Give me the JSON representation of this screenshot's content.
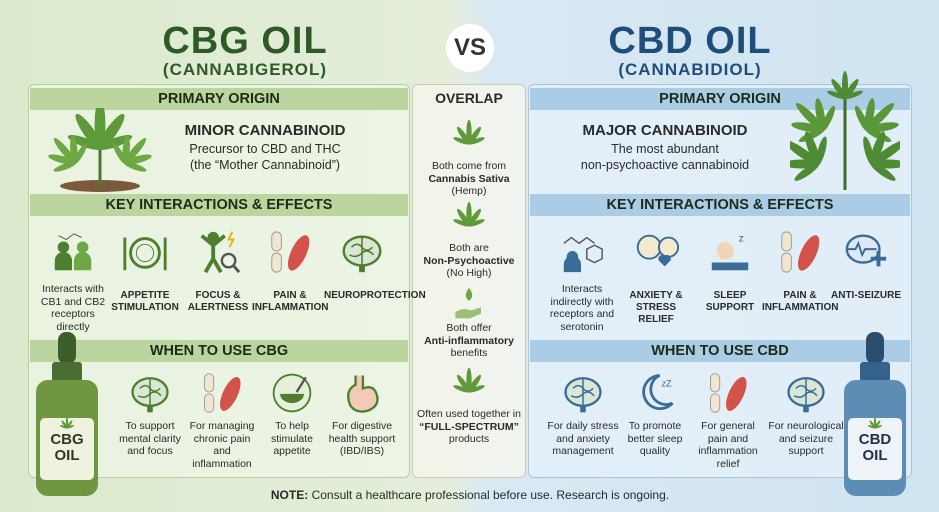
{
  "header": {
    "left_title": "CBG OIL",
    "left_subtitle": "(CANNABIGEROL)",
    "vs": "VS",
    "right_title": "CBD OIL",
    "right_subtitle": "(CANNABIDIOL)"
  },
  "cbg": {
    "origin_heading": "PRIMARY ORIGIN",
    "origin_title": "MINOR CANNABINOID",
    "origin_lines": [
      "Precursor to CBD and THC",
      "(the “Mother Cannabinoid”)"
    ],
    "effects_heading": "KEY INTERACTIONS & EFFECTS",
    "effects": [
      "Interacts with CB1 and CB2 receptors directly",
      "APPETITE STIMULATION",
      "FOCUS & ALERTNESS",
      "PAIN & INFLAMMATION",
      "NEUROPROTECTION"
    ],
    "use_heading": "WHEN TO USE CBG",
    "uses": [
      "To support mental clarity and focus",
      "For managing chronic pain and inflammation",
      "To help stimulate appetite",
      "For digestive health support (IBD/IBS)"
    ],
    "bottle_label": [
      "CBG",
      "OIL"
    ]
  },
  "overlap": {
    "heading": "OVERLAP",
    "items": [
      {
        "before": "Both come from",
        "highlight": "Cannabis Sativa",
        "after": "(Hemp)"
      },
      {
        "before": "Both are",
        "highlight": "Non-Psychoactive",
        "after": "(No High)"
      },
      {
        "before": "Both offer",
        "highlight": "Anti-inflammatory",
        "after": "benefits"
      },
      {
        "before": "Often used together in",
        "highlight": "“FULL-SPECTRUM”",
        "after": "products"
      }
    ]
  },
  "cbd": {
    "origin_heading": "PRIMARY ORIGIN",
    "origin_title": "MAJOR CANNABINOID",
    "origin_lines": [
      "The most abundant",
      "non-psychoactive cannabinoid"
    ],
    "effects_heading": "KEY INTERACTIONS & EFFECTS",
    "effects": [
      "Interacts indirectly with receptors and serotonin",
      "ANXIETY & STRESS RELIEF",
      "SLEEP SUPPORT",
      "PAIN & INFLAMMATION",
      "ANTI-SEIZURE"
    ],
    "use_heading": "WHEN TO USE CBD",
    "uses": [
      "For daily stress and anxiety management",
      "To promote better sleep quality",
      "For general pain and inflammation relief",
      "For neurological and seizure support"
    ],
    "bottle_label": [
      "CBD",
      "OIL"
    ]
  },
  "footer": {
    "label": "NOTE:",
    "text": "Consult a healthcare professional before use. Research is ongoing."
  }
}
